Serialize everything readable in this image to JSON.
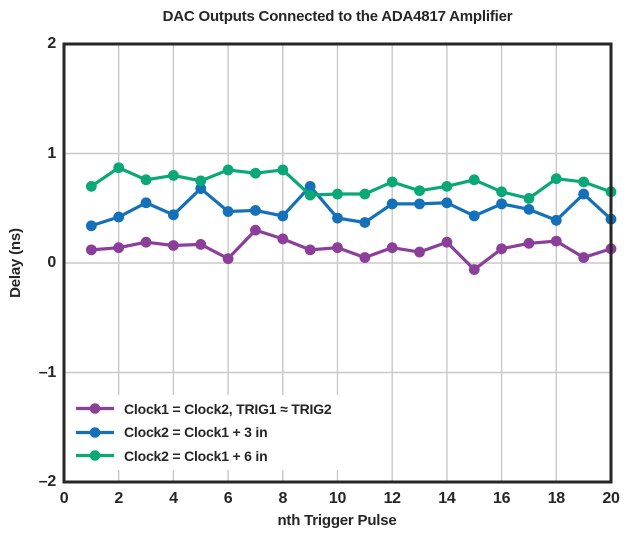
{
  "colors": {
    "background": "#ffffff",
    "text": "#262626",
    "frame": "#262626",
    "grid": "#c9c9c9"
  },
  "chart_data": {
    "type": "line",
    "title": "DAC Outputs Connected to the ADA4817 Amplifier",
    "xlabel": "nth Trigger Pulse",
    "ylabel": "Delay (ns)",
    "xlim": [
      0,
      20
    ],
    "ylim": [
      -2,
      2
    ],
    "x_ticks": [
      0,
      2,
      4,
      6,
      8,
      10,
      12,
      14,
      16,
      18,
      20
    ],
    "y_ticks": [
      2,
      1,
      0,
      -1,
      -2
    ],
    "y_tick_labels": [
      "2",
      "1",
      "0",
      "–1",
      "–2"
    ],
    "grid": true,
    "legend_position": "inside-bottom-left",
    "marker": "circle",
    "x": [
      1,
      2,
      3,
      4,
      5,
      6,
      7,
      8,
      9,
      10,
      11,
      12,
      13,
      14,
      15,
      16,
      17,
      18,
      19,
      20
    ],
    "series": [
      {
        "name": "Clock1 = Clock2, TRIG1 ≈ TRIG2",
        "color": "#8B3F9A",
        "values": [
          0.12,
          0.14,
          0.19,
          0.16,
          0.17,
          0.04,
          0.3,
          0.22,
          0.12,
          0.14,
          0.05,
          0.14,
          0.1,
          0.19,
          -0.06,
          0.13,
          0.18,
          0.2,
          0.05,
          0.13
        ]
      },
      {
        "name": "Clock2 = Clock1 + 3 in",
        "color": "#1471B9",
        "values": [
          0.34,
          0.42,
          0.55,
          0.44,
          0.68,
          0.47,
          0.48,
          0.43,
          0.7,
          0.41,
          0.37,
          0.54,
          0.54,
          0.55,
          0.43,
          0.54,
          0.49,
          0.39,
          0.63,
          0.4
        ]
      },
      {
        "name": "Clock2 = Clock1 + 6 in",
        "color": "#0AA876",
        "values": [
          0.7,
          0.87,
          0.76,
          0.8,
          0.75,
          0.85,
          0.82,
          0.85,
          0.62,
          0.63,
          0.63,
          0.74,
          0.66,
          0.7,
          0.76,
          0.65,
          0.59,
          0.77,
          0.74,
          0.65
        ]
      }
    ]
  }
}
